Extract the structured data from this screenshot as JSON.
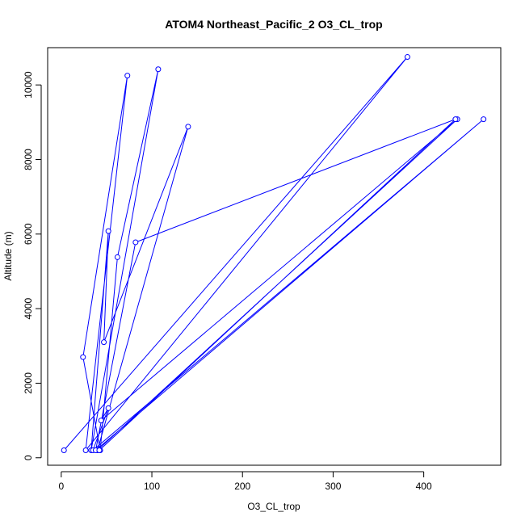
{
  "chart_data": {
    "type": "scatter",
    "title": "ATOM4 Northeast_Pacific_2 O3_CL_trop",
    "xlabel": "O3_CL_trop",
    "ylabel": "Altitude (m)",
    "xlim": [
      -15,
      485
    ],
    "ylim": [
      -200,
      11000
    ],
    "x_ticks": [
      0,
      100,
      200,
      300,
      400
    ],
    "y_ticks": [
      0,
      2000,
      4000,
      6000,
      8000,
      10000
    ],
    "grid": false,
    "legend": "none",
    "line_color": "#0000ff",
    "marker": "open-circle",
    "series": [
      {
        "x": [
          3,
          382,
          27,
          73,
          24,
          43,
          62,
          107,
          33,
          52,
          47,
          140,
          40,
          437,
          44,
          52,
          35,
          466,
          38,
          82,
          435,
          42
        ],
        "y": [
          200,
          10750,
          200,
          10250,
          2700,
          200,
          5380,
          10420,
          200,
          6080,
          3100,
          8880,
          200,
          9080,
          1000,
          1330,
          200,
          9080,
          200,
          5780,
          9080,
          200
        ]
      }
    ]
  }
}
